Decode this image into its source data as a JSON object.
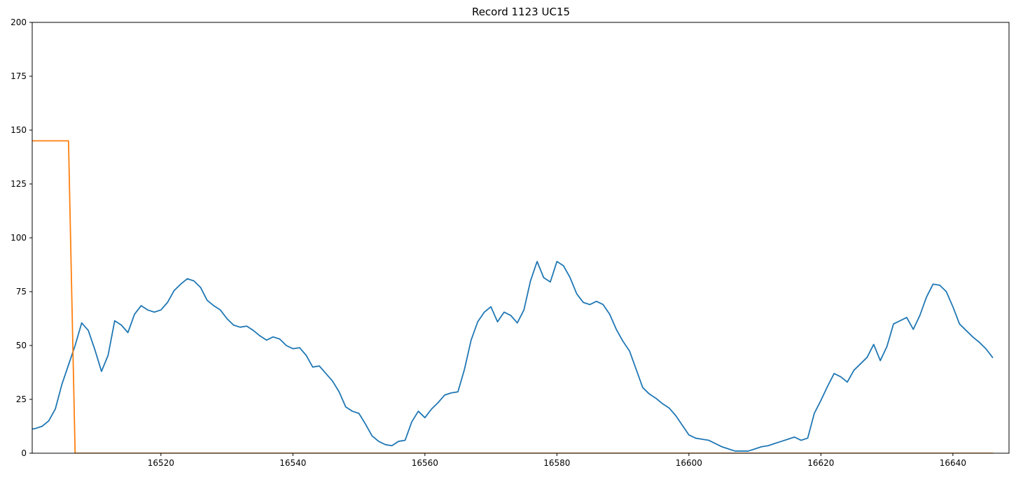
{
  "chart_data": {
    "type": "line",
    "title": "Record 1123 UC15",
    "xlabel": "",
    "ylabel": "",
    "xlim": [
      16500.5,
      16648.5
    ],
    "ylim": [
      0,
      200
    ],
    "xticks": [
      16520,
      16540,
      16560,
      16580,
      16600,
      16620,
      16640
    ],
    "yticks": [
      0,
      25,
      50,
      75,
      100,
      125,
      150,
      175,
      200
    ],
    "grid": false,
    "legend": false,
    "series": [
      {
        "color": "#1f77b4",
        "x": [
          16500,
          16501,
          16502,
          16503,
          16504,
          16505,
          16506,
          16507,
          16508,
          16509,
          16510,
          16511,
          16512,
          16513,
          16514,
          16515,
          16516,
          16517,
          16518,
          16519,
          16520,
          16521,
          16522,
          16523,
          16524,
          16525,
          16526,
          16527,
          16528,
          16529,
          16530,
          16531,
          16532,
          16533,
          16534,
          16535,
          16536,
          16537,
          16538,
          16539,
          16540,
          16541,
          16542,
          16543,
          16544,
          16545,
          16546,
          16547,
          16548,
          16549,
          16550,
          16551,
          16552,
          16553,
          16554,
          16555,
          16556,
          16557,
          16558,
          16559,
          16560,
          16561,
          16562,
          16563,
          16564,
          16565,
          16566,
          16567,
          16568,
          16569,
          16570,
          16571,
          16572,
          16573,
          16574,
          16575,
          16576,
          16577,
          16578,
          16579,
          16580,
          16581,
          16582,
          16583,
          16584,
          16585,
          16586,
          16587,
          16588,
          16589,
          16590,
          16591,
          16592,
          16593,
          16594,
          16595,
          16596,
          16597,
          16598,
          16599,
          16600,
          16601,
          16602,
          16603,
          16604,
          16605,
          16606,
          16607,
          16608,
          16609,
          16610,
          16611,
          16612,
          16613,
          16614,
          16615,
          16616,
          16617,
          16618,
          16619,
          16620,
          16621,
          16622,
          16623,
          16624,
          16625,
          16626,
          16627,
          16628,
          16629,
          16630,
          16631,
          16632,
          16633,
          16634,
          16635,
          16636,
          16637,
          16638,
          16639,
          16640,
          16641,
          16642,
          16643,
          16644,
          16645,
          16646
        ],
        "values": [
          11,
          11.5,
          12.5,
          15,
          20.5,
          32,
          41,
          50,
          60.5,
          57,
          48,
          38,
          45.5,
          61.5,
          59.5,
          56,
          64.5,
          68.5,
          66.5,
          65.5,
          66.5,
          70,
          75.5,
          78.5,
          81,
          80,
          77,
          71,
          68.5,
          66.5,
          62.5,
          59.5,
          58.5,
          59,
          57,
          54.5,
          52.5,
          54,
          53,
          50,
          48.5,
          49,
          45.5,
          40,
          40.5,
          37,
          33.5,
          28.5,
          21.5,
          19.5,
          18.5,
          13.5,
          8,
          5.5,
          4,
          3.5,
          5.5,
          6,
          14.5,
          19.5,
          16.5,
          20.5,
          23.5,
          27,
          28,
          28.5,
          39,
          52.5,
          61,
          65.5,
          68,
          61,
          65.5,
          64,
          60.5,
          66.5,
          80,
          89,
          81.5,
          79.5,
          89,
          87,
          81.5,
          74,
          70,
          69,
          70.5,
          69,
          64.5,
          57.5,
          52,
          47.5,
          39,
          30.5,
          27.5,
          25.5,
          23,
          21,
          17.5,
          13,
          8.5,
          7,
          6.5,
          6,
          4.5,
          3,
          2,
          1,
          1,
          1,
          2,
          3,
          3.5,
          4.5,
          5.5,
          6.5,
          7.5,
          6,
          7,
          18.5,
          24.5,
          31,
          37,
          35.5,
          33,
          38.5,
          41.5,
          44.5,
          50.5,
          43,
          49.5,
          60,
          61.5,
          63,
          57.5,
          64,
          72.5,
          78.5,
          78,
          75,
          68,
          60,
          57,
          54,
          51.5,
          48.5,
          44.5
        ]
      },
      {
        "color": "#ff7f0e",
        "x": [
          16500,
          16501,
          16502,
          16503,
          16504,
          16505,
          16506,
          16507,
          16508,
          16646
        ],
        "values": [
          145,
          145,
          145,
          145,
          145,
          145,
          145,
          0,
          0,
          0
        ]
      }
    ]
  }
}
